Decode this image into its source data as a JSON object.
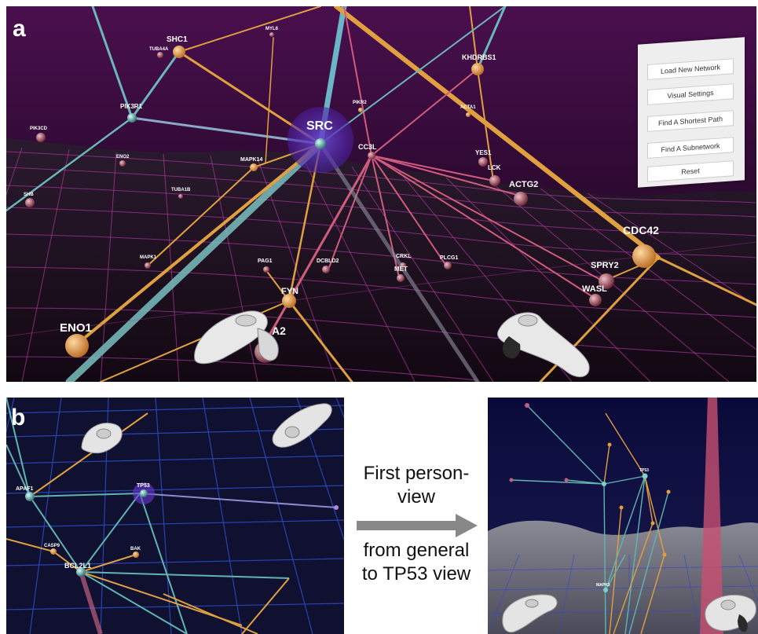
{
  "panels": {
    "a_label": "a",
    "b_label": "b"
  },
  "menu": {
    "toggle_icon": "hamburger-icon",
    "items": [
      {
        "label": "Load New Network"
      },
      {
        "label": "Visual Settings"
      },
      {
        "label": "Find A Shortest Path"
      },
      {
        "label": "Find A Subnetwork"
      },
      {
        "label": "Reset"
      }
    ]
  },
  "panel_a_nodes": [
    {
      "label": "SHC1"
    },
    {
      "label": "TUBA4A"
    },
    {
      "label": "MYL6"
    },
    {
      "label": "PIK3R1"
    },
    {
      "label": "PIK3CD"
    },
    {
      "label": "ENO2"
    },
    {
      "label": "SHB"
    },
    {
      "label": "TUBA1B"
    },
    {
      "label": "MAPK14"
    },
    {
      "label": "SRC"
    },
    {
      "label": "PIKR2"
    },
    {
      "label": "CC3L"
    },
    {
      "label": "KHDRBS1"
    },
    {
      "label": "ACTA1"
    },
    {
      "label": "YES1"
    },
    {
      "label": "LCK"
    },
    {
      "label": "ACTG2"
    },
    {
      "label": "CDC42"
    },
    {
      "label": "SPRY2"
    },
    {
      "label": "WASL"
    },
    {
      "label": "MAPK1"
    },
    {
      "label": "PAG1"
    },
    {
      "label": "DCBLD2"
    },
    {
      "label": "CRKL"
    },
    {
      "label": "MET"
    },
    {
      "label": "PLCG1"
    },
    {
      "label": "FYN"
    },
    {
      "label": "ENO1"
    },
    {
      "label": "A2"
    }
  ],
  "panel_b_left_nodes": [
    {
      "label": "APAF1"
    },
    {
      "label": "TP53"
    },
    {
      "label": "CASP9"
    },
    {
      "label": "BAK"
    },
    {
      "label": "BCL2L1"
    }
  ],
  "panel_b_right_nodes": [
    {
      "label": "TP53"
    },
    {
      "label": "MAPK3"
    }
  ],
  "caption": {
    "line1": "First person-",
    "line2": "view",
    "line3": "from general",
    "line4": "to TP53 view"
  },
  "colors": {
    "panel_a_sky": "#3b0d3f",
    "grid_magenta": "#b0399e",
    "edge_orange": "#e0a040",
    "edge_teal": "#5fb5b0",
    "edge_pink": "#d05c7c",
    "srs_glow": "#5a2ab8",
    "arrow_gray": "#888888"
  }
}
